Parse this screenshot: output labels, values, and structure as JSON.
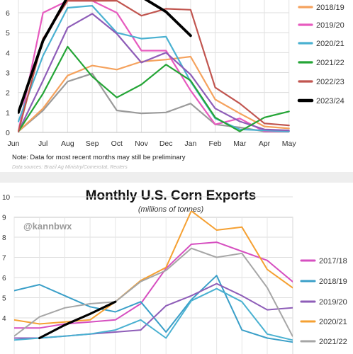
{
  "chart_data": [
    {
      "type": "line",
      "title": "",
      "xlabel": "",
      "ylabel": "",
      "categories": [
        "Jun",
        "Jul",
        "Aug",
        "Sep",
        "Oct",
        "Nov",
        "Dec",
        "Jan",
        "Feb",
        "Mar",
        "Apr",
        "May"
      ],
      "yticks": [
        "0",
        "1",
        "2",
        "3",
        "4",
        "5",
        "6"
      ],
      "ylim": [
        0,
        6.6
      ],
      "grid": true,
      "legend_position": "right",
      "note": "Note: Data for most recent months may still be preliminary",
      "source": "Data sources: Brazil Ag Ministry/Comexstat, Reuters",
      "series": [
        {
          "name": "",
          "color": "#9a9a9a",
          "width": 2.2,
          "values": [
            0.05,
            1.1,
            2.55,
            2.95,
            1.1,
            0.95,
            1.0,
            1.45,
            0.4,
            0.25,
            0.05,
            0.05
          ]
        },
        {
          "name": "2018/19",
          "color": "#f5a25d",
          "width": 2.2,
          "values": [
            0.05,
            1.2,
            2.85,
            3.35,
            3.15,
            3.55,
            3.65,
            3.8,
            1.65,
            0.95,
            0.3,
            0.2
          ]
        },
        {
          "name": "2019/20",
          "color": "#e75bbf",
          "width": 2.2,
          "values": [
            0.05,
            6.0,
            6.6,
            6.6,
            6.0,
            4.1,
            4.1,
            2.1,
            0.4,
            0.7,
            0.05,
            0.05
          ]
        },
        {
          "name": "2020/21",
          "color": "#4ab1d1",
          "width": 2.2,
          "values": [
            0.55,
            3.85,
            6.25,
            6.35,
            5.0,
            4.7,
            4.8,
            2.55,
            0.7,
            0.15,
            0.1,
            0.05
          ]
        },
        {
          "name": "",
          "color": "#8e5db8",
          "width": 2.2,
          "values": [
            0.05,
            2.6,
            5.25,
            5.95,
            4.95,
            3.5,
            4.0,
            2.9,
            1.2,
            0.55,
            0.15,
            0.1
          ]
        },
        {
          "name": "2021/22",
          "color": "#24a536",
          "width": 2.2,
          "values": [
            0.05,
            1.95,
            4.3,
            2.8,
            1.75,
            2.4,
            3.4,
            2.6,
            0.75,
            0.05,
            0.75,
            1.05
          ]
        },
        {
          "name": "2022/23",
          "color": "#c1554f",
          "width": 2.2,
          "values": [
            0.05,
            4.7,
            6.6,
            6.6,
            6.6,
            5.85,
            6.2,
            6.15,
            2.25,
            1.45,
            0.45,
            0.35
          ]
        },
        {
          "name": "2023/24",
          "color": "#000000",
          "width": 3.8,
          "values": [
            1.0,
            4.6,
            6.8,
            6.8,
            6.8,
            6.8,
            6.05,
            4.85,
            null,
            null,
            null,
            null
          ]
        }
      ]
    },
    {
      "type": "line",
      "title": "Monthly U.S. Corn Exports",
      "subtitle": "(millions of tonnes)",
      "watermark": "@kannbwx",
      "xlabel": "",
      "ylabel": "",
      "yticks": [
        "4",
        "5",
        "6",
        "7",
        "8",
        "9",
        "10"
      ],
      "ylim": [
        3.2,
        10
      ],
      "grid": true,
      "legend_position": "right",
      "series": [
        {
          "name": "2017/18",
          "color": "#d64fc0",
          "width": 2.0,
          "values": [
            3.5,
            3.5,
            3.7,
            3.8,
            3.9,
            4.7,
            6.45,
            7.65,
            7.75,
            7.3,
            6.85,
            5.8
          ]
        },
        {
          "name": "2018/19",
          "color": "#3a9fc8",
          "width": 2.0,
          "values": [
            5.35,
            5.65,
            5.1,
            4.55,
            4.3,
            4.8,
            3.3,
            4.9,
            6.1,
            3.4,
            3.0,
            2.8
          ]
        },
        {
          "name": "2019/20",
          "color": "#8e5db8",
          "width": 2.0,
          "values": [
            3.0,
            3.0,
            3.1,
            3.2,
            3.3,
            3.4,
            4.6,
            5.1,
            5.7,
            5.1,
            4.4,
            4.5
          ]
        },
        {
          "name": "2020/21",
          "color": "#f5a032",
          "width": 2.0,
          "values": [
            3.9,
            3.7,
            3.8,
            3.9,
            4.8,
            5.85,
            6.5,
            9.3,
            8.35,
            8.5,
            6.4,
            5.5
          ]
        },
        {
          "name": "2021/22",
          "color": "#a6a6a6",
          "width": 2.0,
          "values": [
            3.1,
            4.05,
            4.5,
            4.7,
            4.8,
            5.8,
            6.35,
            7.45,
            7.0,
            7.2,
            5.5,
            3.1
          ]
        },
        {
          "name": "",
          "color": "#4ab1d1",
          "width": 2.0,
          "values": [
            2.9,
            3.0,
            3.1,
            3.2,
            3.4,
            3.9,
            3.0,
            4.85,
            5.45,
            4.8,
            3.2,
            2.9
          ]
        },
        {
          "name": "",
          "color": "#000000",
          "width": 3.2,
          "values": [
            null,
            3.0,
            3.65,
            4.2,
            4.8,
            null,
            null,
            null,
            null,
            null,
            null,
            null
          ]
        }
      ]
    }
  ]
}
